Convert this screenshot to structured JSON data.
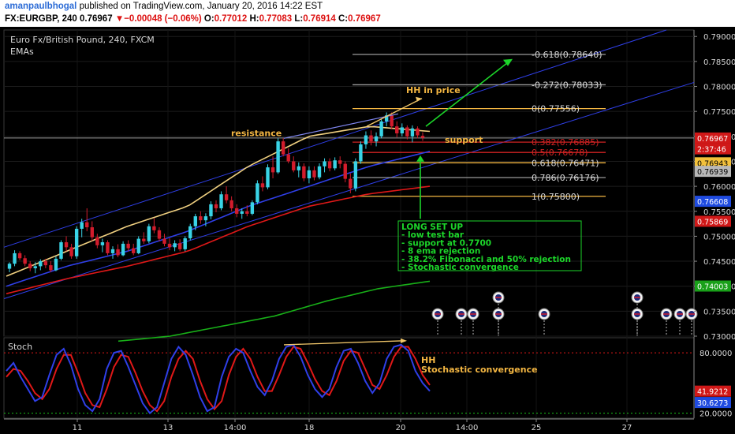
{
  "header": {
    "author": "amanpaulbhogal",
    "published": "published on TradingView.com, January 20, 2016 14:22 EST",
    "symbol": "FX:EURGBP, 240",
    "last": "0.76967",
    "change_arrow": "▼",
    "change": "−0.00048 (−0.06%)",
    "open_label": "O:",
    "open": "0.77012",
    "high_label": "H:",
    "high": "0.77083",
    "low_label": "L:",
    "low": "0.76914",
    "close_label": "C:",
    "close": "0.76967"
  },
  "chart_data": {
    "type": "candlestick",
    "title": "Euro Fx/British Pound, 240, FXCM",
    "subtitle": "EMAs",
    "ylim": [
      0.73,
      0.7913
    ],
    "y_ticks": [
      "0.79000",
      "0.78500",
      "0.78000",
      "0.77500",
      "0.77000",
      "0.76500",
      "0.76000",
      "0.75500",
      "0.75000",
      "0.74500",
      "0.74000",
      "0.73500",
      "0.73000"
    ],
    "x_ticks": [
      "11",
      "13",
      "14:00",
      "18",
      "20",
      "14:00",
      "25",
      "27"
    ],
    "candles": [
      [
        0.7435,
        0.7448,
        0.7428,
        0.7445
      ],
      [
        0.7445,
        0.7472,
        0.744,
        0.7466
      ],
      [
        0.7466,
        0.747,
        0.7452,
        0.7456
      ],
      [
        0.7456,
        0.7462,
        0.744,
        0.7445
      ],
      [
        0.7445,
        0.745,
        0.743,
        0.7436
      ],
      [
        0.7436,
        0.7448,
        0.7426,
        0.744
      ],
      [
        0.744,
        0.7454,
        0.7432,
        0.745
      ],
      [
        0.745,
        0.7455,
        0.7436,
        0.7442
      ],
      [
        0.7442,
        0.745,
        0.7428,
        0.7432
      ],
      [
        0.7432,
        0.746,
        0.743,
        0.7455
      ],
      [
        0.7455,
        0.7492,
        0.7452,
        0.7488
      ],
      [
        0.7488,
        0.75,
        0.747,
        0.7478
      ],
      [
        0.7478,
        0.7485,
        0.7455,
        0.746
      ],
      [
        0.746,
        0.752,
        0.7455,
        0.7515
      ],
      [
        0.7515,
        0.7535,
        0.7498,
        0.7528
      ],
      [
        0.7528,
        0.7556,
        0.751,
        0.7518
      ],
      [
        0.7518,
        0.753,
        0.749,
        0.7498
      ],
      [
        0.7498,
        0.7505,
        0.7476,
        0.7482
      ],
      [
        0.7482,
        0.7495,
        0.7468,
        0.7488
      ],
      [
        0.7488,
        0.7492,
        0.7462,
        0.7466
      ],
      [
        0.7466,
        0.748,
        0.7455,
        0.7474
      ],
      [
        0.7474,
        0.7484,
        0.7458,
        0.7462
      ],
      [
        0.7462,
        0.749,
        0.746,
        0.7485
      ],
      [
        0.7485,
        0.7492,
        0.747,
        0.7476
      ],
      [
        0.7476,
        0.7485,
        0.7462,
        0.7466
      ],
      [
        0.7466,
        0.75,
        0.7464,
        0.7495
      ],
      [
        0.7495,
        0.7508,
        0.7485,
        0.749
      ],
      [
        0.749,
        0.7525,
        0.7486,
        0.752
      ],
      [
        0.752,
        0.7536,
        0.7506,
        0.7512
      ],
      [
        0.7512,
        0.7518,
        0.749,
        0.7495
      ],
      [
        0.7495,
        0.7505,
        0.748,
        0.7485
      ],
      [
        0.7485,
        0.7496,
        0.7472,
        0.7478
      ],
      [
        0.7478,
        0.7492,
        0.747,
        0.7486
      ],
      [
        0.7486,
        0.7494,
        0.747,
        0.7474
      ],
      [
        0.7474,
        0.75,
        0.747,
        0.7496
      ],
      [
        0.7496,
        0.7525,
        0.7492,
        0.752
      ],
      [
        0.752,
        0.7545,
        0.7512,
        0.754
      ],
      [
        0.754,
        0.755,
        0.7525,
        0.7532
      ],
      [
        0.7532,
        0.7546,
        0.752,
        0.754
      ],
      [
        0.754,
        0.757,
        0.7534,
        0.7564
      ],
      [
        0.7564,
        0.7572,
        0.7548,
        0.7556
      ],
      [
        0.7556,
        0.759,
        0.7552,
        0.7584
      ],
      [
        0.7584,
        0.76,
        0.7566,
        0.7572
      ],
      [
        0.7572,
        0.758,
        0.755,
        0.7556
      ],
      [
        0.7556,
        0.7564,
        0.7538,
        0.7545
      ],
      [
        0.7545,
        0.7556,
        0.7535,
        0.755
      ],
      [
        0.755,
        0.7562,
        0.754,
        0.7545
      ],
      [
        0.7545,
        0.7572,
        0.7542,
        0.7568
      ],
      [
        0.7568,
        0.7612,
        0.7564,
        0.7606
      ],
      [
        0.7606,
        0.762,
        0.759,
        0.7598
      ],
      [
        0.7598,
        0.7644,
        0.7594,
        0.7638
      ],
      [
        0.7638,
        0.766,
        0.7616,
        0.7628
      ],
      [
        0.7628,
        0.7696,
        0.7625,
        0.769
      ],
      [
        0.769,
        0.7696,
        0.766,
        0.7664
      ],
      [
        0.7664,
        0.7676,
        0.7646,
        0.765
      ],
      [
        0.765,
        0.766,
        0.7628,
        0.7632
      ],
      [
        0.7632,
        0.7648,
        0.7618,
        0.764
      ],
      [
        0.764,
        0.7646,
        0.761,
        0.7616
      ],
      [
        0.7616,
        0.764,
        0.7606,
        0.7632
      ],
      [
        0.7632,
        0.764,
        0.7612,
        0.7618
      ],
      [
        0.7618,
        0.7646,
        0.7614,
        0.764
      ],
      [
        0.764,
        0.7656,
        0.7628,
        0.765
      ],
      [
        0.765,
        0.7656,
        0.763,
        0.7636
      ],
      [
        0.7636,
        0.7658,
        0.7632,
        0.7652
      ],
      [
        0.7652,
        0.766,
        0.7636,
        0.7645
      ],
      [
        0.7645,
        0.765,
        0.7608,
        0.7615
      ],
      [
        0.7615,
        0.7626,
        0.7586,
        0.7596
      ],
      [
        0.7596,
        0.7656,
        0.759,
        0.765
      ],
      [
        0.765,
        0.769,
        0.7645,
        0.7684
      ],
      [
        0.7684,
        0.771,
        0.7675,
        0.7702
      ],
      [
        0.7702,
        0.7712,
        0.7682,
        0.769
      ],
      [
        0.769,
        0.7708,
        0.768,
        0.77
      ],
      [
        0.77,
        0.7736,
        0.7696,
        0.773
      ],
      [
        0.773,
        0.7748,
        0.772,
        0.7742
      ],
      [
        0.7742,
        0.7748,
        0.7714,
        0.772
      ],
      [
        0.772,
        0.773,
        0.7698,
        0.7706
      ],
      [
        0.7706,
        0.7726,
        0.77,
        0.7718
      ],
      [
        0.7718,
        0.7722,
        0.7694,
        0.77
      ],
      [
        0.77,
        0.7722,
        0.7688,
        0.7716
      ],
      [
        0.7716,
        0.772,
        0.7696,
        0.7702
      ],
      [
        0.7701,
        0.7708,
        0.7691,
        0.7697
      ]
    ],
    "emas": [
      {
        "color": "#f0d080",
        "values": [
          0.742,
          0.747,
          0.752,
          0.756,
          0.764,
          0.77,
          0.772,
          0.771
        ]
      },
      {
        "color": "#2f3fe8",
        "values": [
          0.74,
          0.744,
          0.747,
          0.751,
          0.756,
          0.76,
          0.764,
          0.767
        ]
      },
      {
        "color": "#e01818",
        "values": [
          0.7385,
          0.7415,
          0.744,
          0.747,
          0.752,
          0.756,
          0.7585,
          0.76
        ]
      },
      {
        "color": "#18b018",
        "values": [
          0.729,
          0.73,
          0.732,
          0.734,
          0.737,
          0.7395,
          0.741
        ]
      }
    ],
    "fibonacci": [
      {
        "label": "-0.618(0.78640)",
        "price": 0.7864,
        "color": "#9a9a9a"
      },
      {
        "label": "-0.272(0.78033)",
        "price": 0.78033,
        "color": "#9a9a9a"
      },
      {
        "label": "0(0.77556)",
        "price": 0.77556,
        "color": "#f3b642"
      },
      {
        "label": "0.382(0.76885)",
        "price": 0.76885,
        "color": "#d02222"
      },
      {
        "label": "0.5(0.76678)",
        "price": 0.76678,
        "color": "#d02222"
      },
      {
        "label": "0.618(0.76471)",
        "price": 0.76471,
        "color": "#f3b642"
      },
      {
        "label": "0.786(0.76176)",
        "price": 0.76176,
        "color": "#9a9a9a"
      },
      {
        "label": "1(0.75800)",
        "price": 0.758,
        "color": "#f3b642"
      }
    ],
    "price_tags": [
      {
        "text": "0.76967",
        "price": 0.76967,
        "bg": "#d01818",
        "fg": "#ffffff"
      },
      {
        "text": "2:37:46",
        "price": 0.7675,
        "bg": "#d01818",
        "fg": "#ffffff"
      },
      {
        "text": "0.76943",
        "price": 0.76471,
        "bg": "#f3c13a",
        "fg": "#000000"
      },
      {
        "text": "0.76939",
        "price": 0.763,
        "bg": "#b8b8b8",
        "fg": "#000000"
      },
      {
        "text": "0.76608",
        "price": 0.757,
        "bg": "#1f4be0",
        "fg": "#ffffff"
      },
      {
        "text": "0.75869",
        "price": 0.753,
        "bg": "#d01818",
        "fg": "#ffffff"
      },
      {
        "text": "0.74003",
        "price": 0.74003,
        "bg": "#19a019",
        "fg": "#ffffff"
      }
    ],
    "annotations": {
      "resistance": "resistance",
      "hh_price": "HH in price",
      "support": "support",
      "setup_lines": [
        "LONG SET UP",
        "- low test bar",
        "- support at 0.7700",
        "- 8 ema rejection",
        "- 38.2% Fibonacci and 50% rejection",
        "- Stochastic convergence"
      ],
      "stoch_hh": "HH",
      "stoch_conv": "Stochastic convergence"
    },
    "stoch": {
      "label": "Stoch",
      "ylim": [
        15,
        95
      ],
      "y_ticks": [
        "80.0000",
        "20.0000"
      ],
      "k_tag": "41.9212",
      "d_tag": "30.6273",
      "k": [
        62,
        70,
        56,
        44,
        32,
        36,
        58,
        78,
        84,
        68,
        44,
        28,
        22,
        34,
        64,
        80,
        82,
        66,
        48,
        30,
        20,
        26,
        50,
        74,
        86,
        78,
        58,
        36,
        22,
        26,
        56,
        76,
        84,
        80,
        62,
        46,
        38,
        52,
        74,
        86,
        88,
        76,
        58,
        44,
        36,
        44,
        66,
        82,
        84,
        70,
        52,
        40,
        50,
        74,
        86,
        88,
        82,
        62,
        50,
        42
      ],
      "d": [
        56,
        64,
        62,
        52,
        40,
        34,
        44,
        64,
        78,
        78,
        60,
        40,
        28,
        26,
        44,
        66,
        78,
        76,
        60,
        42,
        28,
        22,
        32,
        56,
        74,
        82,
        74,
        52,
        34,
        24,
        32,
        58,
        76,
        84,
        74,
        56,
        42,
        42,
        58,
        76,
        86,
        84,
        70,
        54,
        42,
        38,
        52,
        72,
        82,
        80,
        64,
        48,
        44,
        58,
        76,
        86,
        86,
        74,
        58,
        48
      ]
    }
  }
}
